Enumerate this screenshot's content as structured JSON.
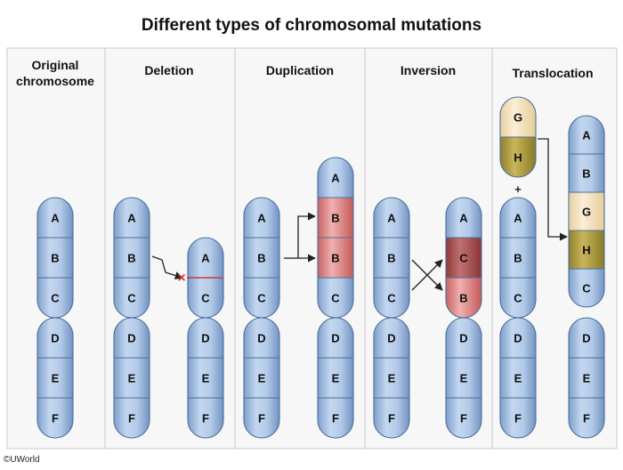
{
  "title": "Different types of chromosomal mutations",
  "copyright": "©UWorld",
  "columns": [
    {
      "id": "original",
      "header_lines": [
        "Original",
        "chromosome"
      ]
    },
    {
      "id": "deletion",
      "header_lines": [
        "Deletion"
      ]
    },
    {
      "id": "duplication",
      "header_lines": [
        "Duplication"
      ]
    },
    {
      "id": "inversion",
      "header_lines": [
        "Inversion"
      ]
    },
    {
      "id": "translocation",
      "header_lines": [
        "Translocation"
      ]
    }
  ],
  "plus_sign": "+",
  "deletion_marker": "×",
  "colors": {
    "panel_bg": "#f7f7f7",
    "panel_border": "#c9c9c9",
    "chromosome_blue": "#a9c4e6",
    "chromosome_edge": "#4a6f9c",
    "highlight_red": "#e79a9a",
    "highlight_cream": "#f6e2b8",
    "highlight_olive": "#b4a248",
    "deletion_mark": "#d6323a"
  },
  "chromosomes": [
    {
      "id": "orig",
      "upper": [
        {
          "label": "A"
        },
        {
          "label": "B"
        },
        {
          "label": "C"
        }
      ],
      "lower": [
        {
          "label": "D"
        },
        {
          "label": "E"
        },
        {
          "label": "F"
        }
      ]
    },
    {
      "id": "del-before",
      "upper": [
        {
          "label": "A"
        },
        {
          "label": "B"
        },
        {
          "label": "C"
        }
      ],
      "lower": [
        {
          "label": "D"
        },
        {
          "label": "E"
        },
        {
          "label": "F"
        }
      ]
    },
    {
      "id": "del-after",
      "upper": [
        {
          "label": "A"
        },
        {
          "label": "C"
        }
      ],
      "lower": [
        {
          "label": "D"
        },
        {
          "label": "E"
        },
        {
          "label": "F"
        }
      ]
    },
    {
      "id": "dup-before",
      "upper": [
        {
          "label": "A"
        },
        {
          "label": "B"
        },
        {
          "label": "C"
        }
      ],
      "lower": [
        {
          "label": "D"
        },
        {
          "label": "E"
        },
        {
          "label": "F"
        }
      ]
    },
    {
      "id": "dup-after",
      "upper": [
        {
          "label": "A"
        },
        {
          "label": "B",
          "hl": "red"
        },
        {
          "label": "B",
          "hl": "red"
        },
        {
          "label": "C"
        }
      ],
      "lower": [
        {
          "label": "D"
        },
        {
          "label": "E"
        },
        {
          "label": "F"
        }
      ]
    },
    {
      "id": "inv-before",
      "upper": [
        {
          "label": "A"
        },
        {
          "label": "B"
        },
        {
          "label": "C"
        }
      ],
      "lower": [
        {
          "label": "D"
        },
        {
          "label": "E"
        },
        {
          "label": "F"
        }
      ]
    },
    {
      "id": "inv-after",
      "upper": [
        {
          "label": "A"
        },
        {
          "label": "C",
          "hl": "darkred"
        },
        {
          "label": "B",
          "hl": "red"
        }
      ],
      "lower": [
        {
          "label": "D"
        },
        {
          "label": "E"
        },
        {
          "label": "F"
        }
      ]
    },
    {
      "id": "trans-donor",
      "upper": [
        {
          "label": "G",
          "hl": "cream"
        },
        {
          "label": "H",
          "hl": "olive"
        }
      ],
      "lower": []
    },
    {
      "id": "trans-recipient",
      "upper": [
        {
          "label": "A"
        },
        {
          "label": "B"
        },
        {
          "label": "C"
        }
      ],
      "lower": [
        {
          "label": "D"
        },
        {
          "label": "E"
        },
        {
          "label": "F"
        }
      ]
    },
    {
      "id": "trans-result",
      "upper": [
        {
          "label": "A"
        },
        {
          "label": "B"
        },
        {
          "label": "G",
          "hl": "cream"
        },
        {
          "label": "H",
          "hl": "olive"
        },
        {
          "label": "C"
        }
      ],
      "lower": [
        {
          "label": "D"
        },
        {
          "label": "E"
        },
        {
          "label": "F"
        }
      ]
    }
  ]
}
